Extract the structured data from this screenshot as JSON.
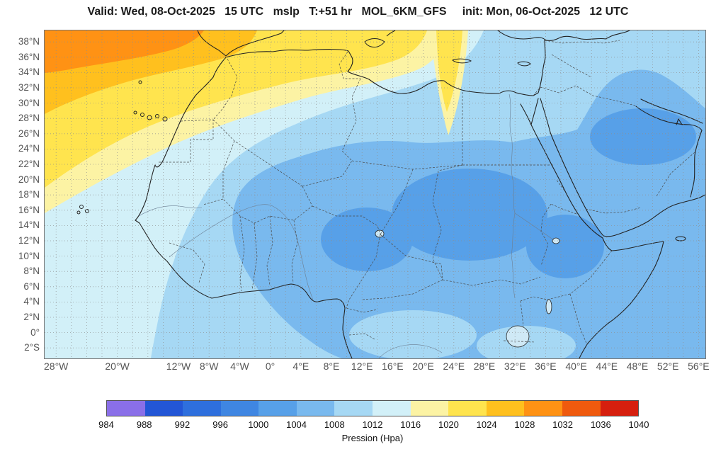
{
  "header": {
    "title": "Valid: Wed, 08-Oct-2025   15 UTC   mslp   T:+51 hr   MOL_6KM_GFS     init: Mon, 06-Oct-2025   12 UTC"
  },
  "map": {
    "lat_labels": [
      "38°N",
      "36°N",
      "34°N",
      "32°N",
      "30°N",
      "28°N",
      "26°N",
      "24°N",
      "22°N",
      "20°N",
      "18°N",
      "16°N",
      "14°N",
      "12°N",
      "10°N",
      "8°N",
      "6°N",
      "4°N",
      "2°N",
      "0°",
      "2°S"
    ],
    "lat_values": [
      38,
      36,
      34,
      32,
      30,
      28,
      26,
      24,
      22,
      20,
      18,
      16,
      14,
      12,
      10,
      8,
      6,
      4,
      2,
      0,
      -2
    ],
    "lon_labels": [
      "28°W",
      "20°W",
      "12°W",
      "8°W",
      "4°W",
      "0°",
      "4°E",
      "8°E",
      "12°E",
      "16°E",
      "20°E",
      "24°E",
      "28°E",
      "32°E",
      "36°E",
      "40°E",
      "44°E",
      "48°E",
      "52°E",
      "56°E"
    ],
    "lon_values": [
      -28,
      -20,
      -12,
      -8,
      -4,
      0,
      4,
      8,
      12,
      16,
      20,
      24,
      28,
      32,
      36,
      40,
      44,
      48,
      52,
      56
    ]
  },
  "colorbar": {
    "label": "Pression (Hpa)",
    "ticks": [
      984,
      988,
      992,
      996,
      1000,
      1004,
      1008,
      1012,
      1016,
      1020,
      1024,
      1028,
      1032,
      1036,
      1040
    ],
    "colors": [
      "#8a6fe8",
      "#2356d6",
      "#2e6fdd",
      "#3f86e2",
      "#57a0e8",
      "#79b9ee",
      "#a6d8f4",
      "#d2f0f8",
      "#fcf3a4",
      "#ffe44e",
      "#ffc01e",
      "#ff9214",
      "#ef5a0e",
      "#d61f0e"
    ]
  },
  "chart_data": {
    "type": "heatmap",
    "subtype": "filled-contour mean-sea-level-pressure map over Africa / Arabia",
    "title": "mslp MOL_6KM_GFS",
    "valid": "Wed, 08-Oct-2025 15 UTC",
    "forecast_hour": "+51 hr",
    "model": "MOL_6KM_GFS",
    "init": "Mon, 06-Oct-2025 12 UTC",
    "units": "hPa",
    "colorbar_label": "Pression (Hpa)",
    "levels": [
      984,
      988,
      992,
      996,
      1000,
      1004,
      1008,
      1012,
      1016,
      1020,
      1024,
      1028,
      1032,
      1036,
      1040
    ],
    "palette": [
      "#8a6fe8",
      "#2356d6",
      "#2e6fdd",
      "#3f86e2",
      "#57a0e8",
      "#79b9ee",
      "#a6d8f4",
      "#d2f0f8",
      "#fcf3a4",
      "#ffe44e",
      "#ffc01e",
      "#ff9214",
      "#ef5a0e",
      "#d61f0e"
    ],
    "lon_range_deg": [
      -29.5,
      57
    ],
    "lat_range_deg": [
      -3.5,
      39.5
    ],
    "grid_spacing_deg": 2,
    "legend_position": "bottom",
    "features": [
      {
        "region": "Northeast Atlantic off Morocco (Azores high ridge, NW corner)",
        "pressure_hpa": "1024-1032"
      },
      {
        "region": "Western and central Mediterranean band",
        "pressure_hpa": "1016-1024"
      },
      {
        "region": "Yellow tongue dipping over Gulf of Sidra / Cyrenaica (~18°E)",
        "pressure_hpa": "1016-1020"
      },
      {
        "region": "West African Atlantic coastal waters",
        "pressure_hpa": "1012-1016"
      },
      {
        "region": "Most of Sahara, Gulf of Guinea and equatorial Africa",
        "pressure_hpa": "1008-1012"
      },
      {
        "region": "Sahel belt, Horn of Africa and Arabian Peninsula interior",
        "pressure_hpa": "1004-1008"
      },
      {
        "region": "Heat lows over Niger/Chad/Sudan and Ethiopian highlands",
        "pressure_hpa": "1000-1004"
      }
    ]
  }
}
